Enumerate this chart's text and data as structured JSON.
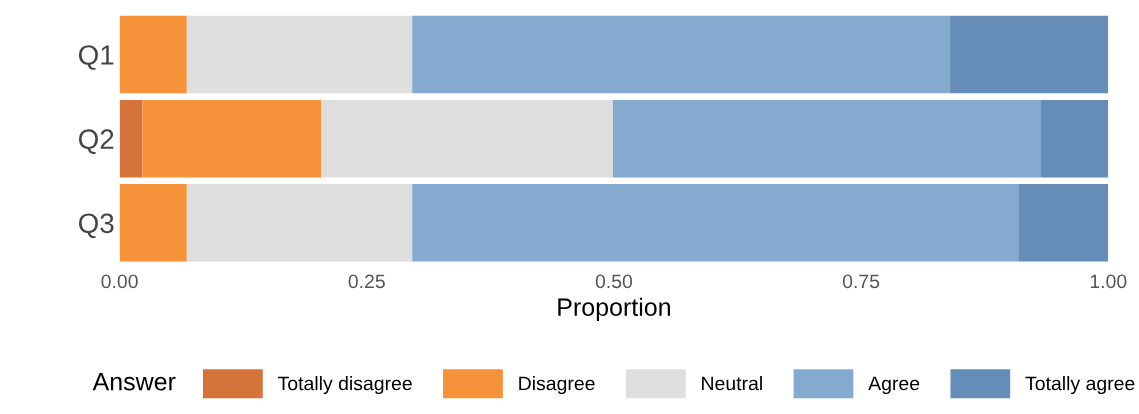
{
  "chart_data": {
    "type": "bar",
    "orientation": "horizontal",
    "stacked": true,
    "categories": [
      "Q1",
      "Q2",
      "Q3"
    ],
    "series": [
      {
        "name": "Totally disagree",
        "color": "#d4733a",
        "values": [
          0,
          0.023,
          0
        ]
      },
      {
        "name": "Disagree",
        "color": "#f5923a",
        "values": [
          0.068,
          0.181,
          0.068
        ]
      },
      {
        "name": "Neutral",
        "color": "#dedede",
        "values": [
          0.228,
          0.295,
          0.228
        ]
      },
      {
        "name": "Agree",
        "color": "#84aacf",
        "values": [
          0.544,
          0.433,
          0.613
        ]
      },
      {
        "name": "Totally agree",
        "color": "#668db8",
        "values": [
          0.16,
          0.068,
          0.091
        ]
      }
    ],
    "xlabel": "Proportion",
    "legend_title": "Answer",
    "legend": "bottom",
    "grid": false,
    "xlim": [
      0,
      1
    ],
    "xticks": [
      {
        "value": 0,
        "label": "0.00"
      },
      {
        "value": 0.25,
        "label": "0.25"
      },
      {
        "value": 0.5,
        "label": "0.50"
      },
      {
        "value": 0.75,
        "label": "0.75"
      },
      {
        "value": 1,
        "label": "1.00"
      }
    ]
  }
}
